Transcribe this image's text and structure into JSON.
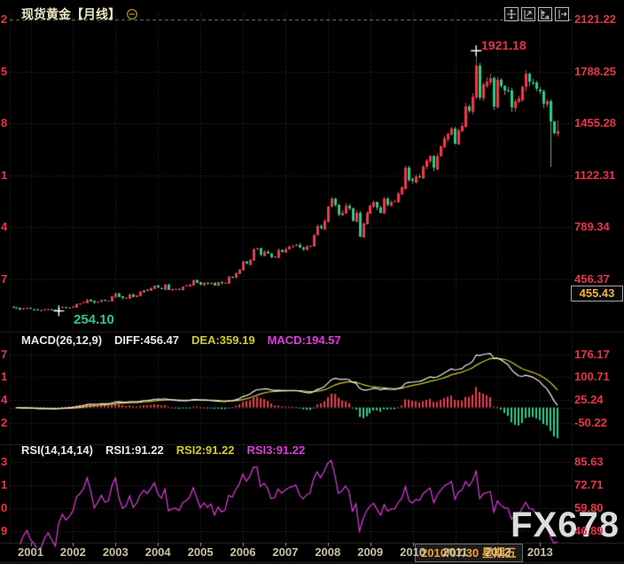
{
  "window": {
    "title": "现货黄金【月线】"
  },
  "toolbar": {
    "icons": [
      "crosshair-move",
      "scale-right-axis",
      "scale-bottom-axis",
      "pan-right"
    ]
  },
  "price_axis": {
    "labels": [
      "2121.22",
      "1788.25",
      "1455.28",
      "1122.31",
      "789.34",
      "456.37"
    ],
    "current_badge": "455.43"
  },
  "markers": {
    "high": {
      "value": "1921.18"
    },
    "low": {
      "value": "254.10"
    }
  },
  "macd_panel": {
    "title": "MACD(26,12,9)",
    "diff_label": "DIFF:456.47",
    "dea_label": "DEA:359.19",
    "macd_label": "MACD:194.57",
    "axis": [
      "176.17",
      "100.71",
      "25.24",
      "-50.22"
    ]
  },
  "rsi_panel": {
    "title": "RSI(14,14,14)",
    "rsi1_label": "RSI1:91.22",
    "rsi2_label": "RSI2:91.22",
    "rsi3_label": "RSI3:91.22",
    "axis": [
      "85.63",
      "72.71",
      "59.80",
      "46.89"
    ]
  },
  "time_axis": {
    "years": [
      "2001",
      "2002",
      "2003",
      "2004",
      "2005",
      "2006",
      "2007",
      "2008",
      "2009",
      "2010",
      "2011",
      "2012",
      "2013"
    ],
    "cursor_date": "2010/07/30 星期五"
  },
  "watermark": "FX678",
  "colors": {
    "up": "#ea3b4e",
    "down": "#2ec987",
    "diff_line": "#f0f0f0",
    "dea_line": "#d2cb2f",
    "rsi_line": "#e03ae0",
    "axis_text": "#ea3347",
    "year_text": "#c9c2a2",
    "badge_text": "#f2b13c",
    "cursor_text": "#f0a42e",
    "title_text": "#ece7c3"
  },
  "chart_data": {
    "type": "candlestick",
    "title": "现货黄金 monthly spot gold",
    "interval": "monthly",
    "start": "2000-08",
    "closes": [
      277,
      273,
      264,
      269,
      272,
      265,
      262,
      257,
      258,
      263,
      266,
      261,
      256,
      271,
      278,
      274,
      277,
      282,
      297,
      301,
      308,
      327,
      318,
      304,
      312,
      323,
      317,
      319,
      347,
      368,
      347,
      334,
      339,
      361,
      346,
      355,
      375,
      388,
      384,
      398,
      416,
      402,
      396,
      423,
      388,
      393,
      395,
      391,
      410,
      415,
      425,
      453,
      438,
      422,
      435,
      428,
      436,
      418,
      437,
      429,
      433,
      473,
      470,
      495,
      517,
      568,
      556,
      582,
      651,
      653,
      613,
      634,
      623,
      599,
      603,
      646,
      636,
      651,
      664,
      669,
      677,
      659,
      650,
      665,
      672,
      743,
      795,
      783,
      834,
      923,
      971,
      933,
      871,
      885,
      930,
      913,
      833,
      884,
      730,
      816,
      882,
      927,
      952,
      916,
      883,
      975,
      934,
      953,
      955,
      1008,
      1045,
      1175,
      1096,
      1083,
      1118,
      1113,
      1180,
      1215,
      1244,
      1169,
      1248,
      1307,
      1359,
      1386,
      1421,
      1327,
      1411,
      1439,
      1563,
      1536,
      1628,
      1826,
      1620,
      1705,
      1725,
      1746,
      1564,
      1737,
      1696,
      1669,
      1664,
      1558,
      1598,
      1614,
      1691,
      1772,
      1719,
      1715,
      1675,
      1661,
      1580,
      1597,
      1469,
      1394,
      1408
    ],
    "overrides": {
      "13": {
        "low": 254.1
      },
      "131": {
        "high": 1921.18
      },
      "152": {
        "low": 1180
      },
      "154": {
        "high": 1475
      }
    },
    "high_marker": {
      "index": 131,
      "value": 1921.18
    },
    "low_marker": {
      "index": 13,
      "value": 254.1
    },
    "y_axis_values": [
      2121.22,
      1788.25,
      1455.28,
      1122.31,
      789.34,
      456.37
    ],
    "indicators": {
      "macd": {
        "params": [
          26,
          12,
          9
        ],
        "axis_values": [
          176.17,
          100.71,
          25.24,
          -50.22
        ]
      },
      "rsi": {
        "params": [
          14,
          14,
          14
        ],
        "axis_values": [
          85.63,
          72.71,
          59.8,
          46.89
        ]
      }
    },
    "x_years": [
      2001,
      2002,
      2003,
      2004,
      2005,
      2006,
      2007,
      2008,
      2009,
      2010,
      2011,
      2012,
      2013
    ],
    "legend_position": "top-left-of-each-pane",
    "grid": "dotted"
  }
}
